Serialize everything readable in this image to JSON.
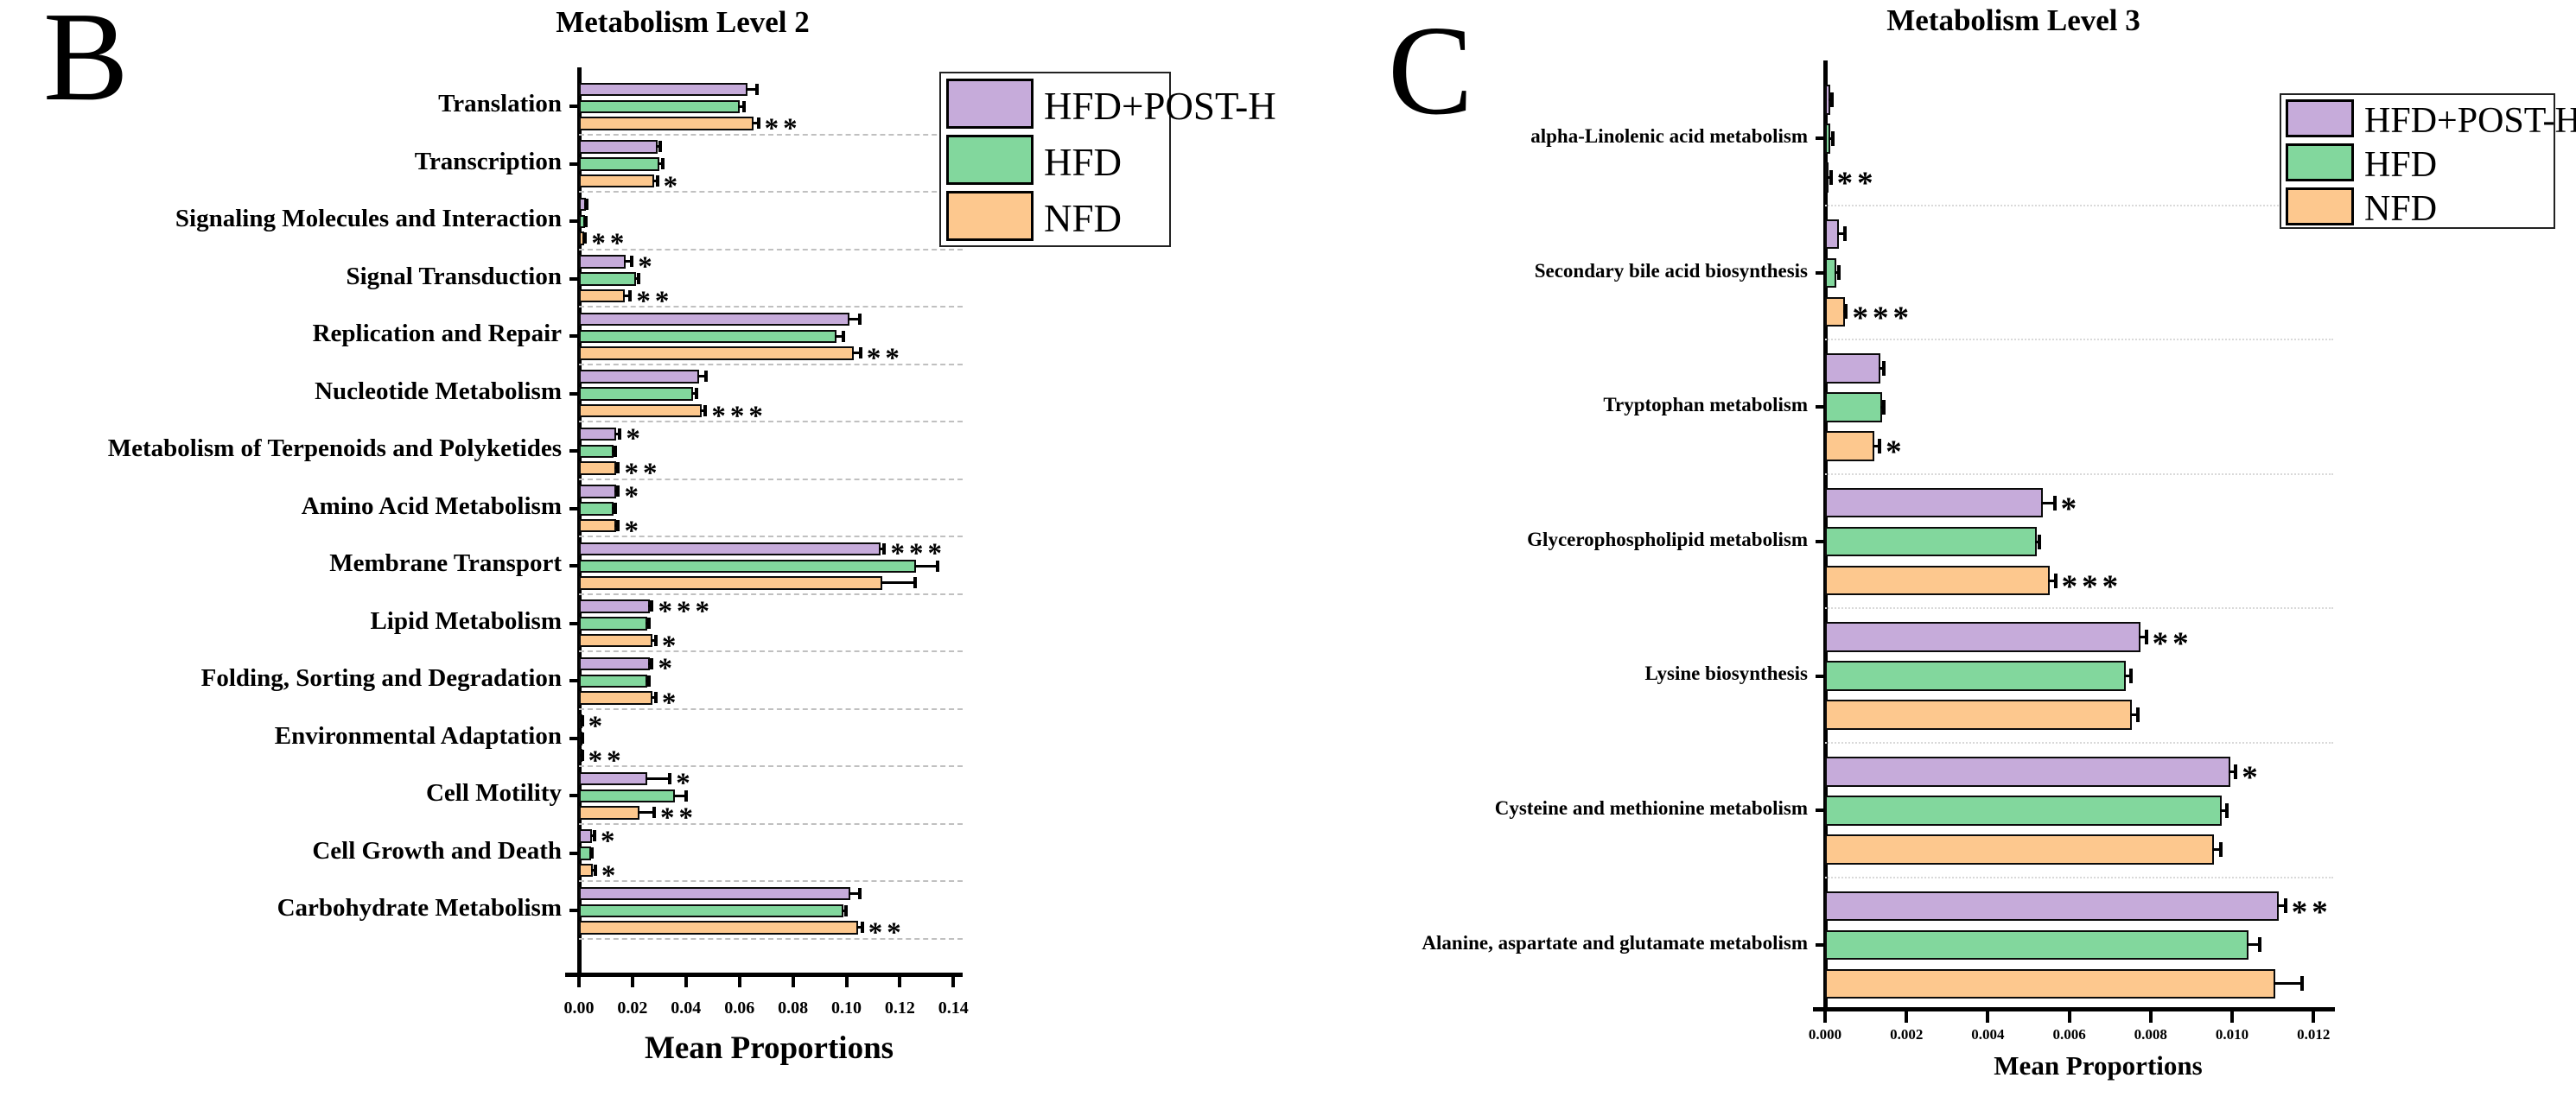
{
  "figure_caption": "Two-panel horizontal grouped bar chart of predicted metabolic pathways",
  "colors": {
    "hfd_post_h": "#c6abda",
    "hfd": "#82d79d",
    "nfd": "#fdc88e",
    "bar_border": "#0a0a0a",
    "separator_b": "#c0c0c0",
    "separator_c": "#d9d9d9"
  },
  "chart_data": [
    {
      "type": "bar",
      "orientation": "horizontal",
      "panel_letter": "B",
      "title": "Metabolism Level 2",
      "xlabel": "Mean Proportions",
      "legend_position": "top-right",
      "grid": "dashed separators between category groups",
      "xlim": [
        0,
        0.1438
      ],
      "x_ticks": [
        "0.00",
        "0.02",
        "0.04",
        "0.06",
        "0.08",
        "0.10",
        "0.12",
        "0.14"
      ],
      "x_tick_values": [
        0,
        0.02,
        0.04,
        0.06,
        0.08,
        0.1,
        0.12,
        0.14
      ],
      "categories": [
        "Translation",
        "Transcription",
        "Signaling Molecules and Interaction",
        "Signal Transduction",
        "Replication and Repair",
        "Nucleotide Metabolism",
        "Metabolism of Terpenoids and Polyketides",
        "Amino Acid Metabolism",
        "Membrane Transport",
        "Lipid Metabolism",
        "Folding, Sorting and Degradation",
        "Environmental Adaptation",
        "Cell Motility",
        "Cell Growth and Death",
        "Carbohydrate Metabolism"
      ],
      "series": [
        {
          "name": "HFD+POST-H",
          "color": "#c6abda",
          "values": [
            0.063,
            0.0295,
            0.0025,
            0.0176,
            0.101,
            0.0449,
            0.0139,
            0.0139,
            0.1127,
            0.0265,
            0.0265,
            0.0009,
            0.0255,
            0.005,
            0.1014
          ],
          "errors": [
            0.0037,
            0.0008,
            0.0003,
            0.0022,
            0.004,
            0.0026,
            0.0014,
            0.0008,
            0.0015,
            0.0008,
            0.0008,
            0.0002,
            0.0085,
            0.0008,
            0.0035
          ],
          "sig": [
            "",
            "",
            "",
            "*",
            "",
            "",
            "*",
            "*",
            "***",
            "***",
            "*",
            "*",
            "*",
            "*",
            ""
          ]
        },
        {
          "name": "HFD",
          "color": "#82d79d",
          "values": [
            0.06,
            0.0301,
            0.0023,
            0.0212,
            0.0964,
            0.0426,
            0.0129,
            0.0129,
            0.126,
            0.0255,
            0.0255,
            0.0009,
            0.036,
            0.0044,
            0.0988
          ],
          "errors": [
            0.0016,
            0.0012,
            0.0003,
            0.0012,
            0.0025,
            0.0014,
            0.0006,
            0.0006,
            0.008,
            0.0008,
            0.0008,
            0.0002,
            0.004,
            0.0005,
            0.001
          ],
          "sig": [
            "",
            "",
            "",
            "",
            "",
            "",
            "",
            "",
            "",
            "",
            "",
            "",
            "",
            "",
            ""
          ]
        },
        {
          "name": "NFD",
          "color": "#fdc88e",
          "values": [
            0.0653,
            0.0281,
            0.0021,
            0.0172,
            0.1028,
            0.0459,
            0.0139,
            0.0139,
            0.1133,
            0.0275,
            0.0275,
            0.0009,
            0.0226,
            0.0053,
            0.1044
          ],
          "errors": [
            0.0018,
            0.0012,
            0.0003,
            0.002,
            0.0025,
            0.0014,
            0.0008,
            0.0008,
            0.0125,
            0.0012,
            0.0012,
            0.0002,
            0.0055,
            0.0008,
            0.0015
          ],
          "sig": [
            "**",
            "*",
            "**",
            "**",
            "**",
            "***",
            "**",
            "*",
            "",
            "*",
            "*",
            "**",
            "**",
            "*",
            "**"
          ]
        }
      ]
    },
    {
      "type": "bar",
      "orientation": "horizontal",
      "panel_letter": "C",
      "title": "Metabolism Level 3",
      "xlabel": "Mean Proportions",
      "legend_position": "top-right",
      "grid": "dotted separators between category groups",
      "xlim": [
        0,
        0.01253
      ],
      "x_ticks": [
        "0.000",
        "0.002",
        "0.004",
        "0.006",
        "0.008",
        "0.010",
        "0.012"
      ],
      "x_tick_values": [
        0,
        0.002,
        0.004,
        0.006,
        0.008,
        0.01,
        0.012
      ],
      "categories": [
        "alpha-Linolenic acid metabolism",
        "Secondary bile acid biosynthesis",
        "Tryptophan metabolism",
        "Glycerophospholipid metabolism",
        "Lysine biosynthesis",
        "Cysteine and methionine metabolism",
        "Alanine, aspartate and glutamate metabolism"
      ],
      "series": [
        {
          "name": "HFD+POST-H",
          "color": "#c6abda",
          "values": [
            0.00012,
            0.00034,
            0.00136,
            0.00536,
            0.00775,
            0.00995,
            0.01114
          ],
          "errors": [
            4e-05,
            0.00014,
            9e-05,
            0.00028,
            0.00014,
            0.00014,
            0.00017
          ],
          "sig": [
            "",
            "",
            "",
            "*",
            "**",
            "*",
            "**"
          ]
        },
        {
          "name": "HFD",
          "color": "#82d79d",
          "values": [
            0.00013,
            0.00027,
            0.0014,
            0.0052,
            0.00739,
            0.00974,
            0.01041
          ],
          "errors": [
            6e-05,
            8e-05,
            4e-05,
            6e-05,
            0.00013,
            0.00013,
            0.00028
          ],
          "sig": [
            "",
            "",
            "",
            "",
            "",
            "",
            ""
          ]
        },
        {
          "name": "NFD",
          "color": "#fdc88e",
          "values": [
            8e-05,
            0.00048,
            0.00122,
            0.00552,
            0.00754,
            0.00955,
            0.01106
          ],
          "errors": [
            6e-05,
            4e-05,
            0.00012,
            0.00014,
            0.00014,
            0.00018,
            0.00066
          ],
          "sig": [
            "**",
            "***",
            "*",
            "***",
            "",
            "",
            ""
          ]
        }
      ]
    }
  ]
}
